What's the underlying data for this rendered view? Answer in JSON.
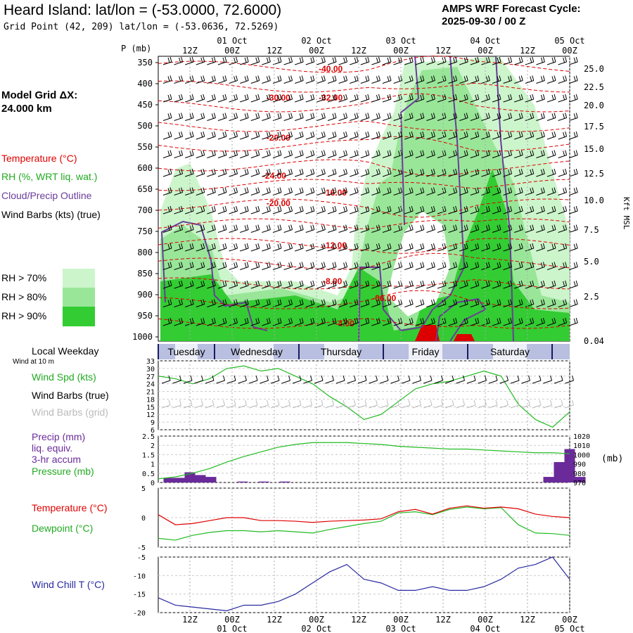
{
  "header": {
    "title": "Heard Island:  lat/lon = (-53.0000, 72.6000)",
    "grid_point": "Grid Point (42, 209) lat/lon = (-53.0636, 72.5269)",
    "cycle_line1": "AMPS WRF Forecast Cycle:",
    "cycle_line2": "2025-09-30 / 00  Z"
  },
  "legend": {
    "model_grid_label": "Model Grid ΔX:",
    "model_grid_value": " 24.000 km",
    "temperature": "Temperature (°C)",
    "rh": "RH (%, WRT liq. wat.)",
    "cloud": "Cloud/Precip Outline",
    "wind": "Wind Barbs (kts) (true)",
    "rh70": "RH > 70%",
    "rh80": "RH > 80%",
    "rh90": "RH > 90%",
    "colors": {
      "rh70": "#ccf5cc",
      "rh80": "#99e699",
      "rh90": "#33cc33",
      "temp": "#e00000",
      "cloud": "#6a3d9a",
      "wind_spd": "#22bb22",
      "dew": "#22bb22",
      "chill": "#2a2aa0",
      "precip": "#6a2a9a"
    }
  },
  "time_axis": {
    "top_labels": [
      "12Z",
      "00Z",
      "12Z",
      "00Z",
      "12Z",
      "00Z",
      "12Z",
      "00Z",
      "12Z",
      "00Z"
    ],
    "date_labels": [
      "01 Oct",
      "02 Oct",
      "03 Oct",
      "04 Oct",
      "05 Oct"
    ],
    "pressure_unit": "P (mb)",
    "right_unit": "Kft MSL"
  },
  "weekday_band": {
    "title": "Local Weekday",
    "days": [
      "Tuesday",
      "Wednesday",
      "Thursday",
      "Friday",
      "Saturday"
    ]
  },
  "panels": {
    "wind_note": "Wind at 10 m",
    "wind_spd": "Wind Spd (kts)",
    "wind_true": "Wind Barbs (true)",
    "wind_grid": "Wind Barbs (grid)",
    "precip1": "Precip (mm)",
    "precip2": "liq. equiv.",
    "precip3": "3-hr accum",
    "pressure": "Pressure (mb)",
    "pressure_unit": "(mb)",
    "temperature": "Temperature (°C)",
    "dewpoint": "Dewpoint (°C)",
    "windchill": "Wind Chill T (°C)"
  },
  "chart_data": [
    {
      "type": "heatmap",
      "name": "cross-section",
      "y_ticks_mb": [
        350,
        400,
        450,
        500,
        550,
        600,
        650,
        700,
        750,
        800,
        850,
        900,
        950,
        1000
      ],
      "right_ticks_kft": [
        "25.0",
        "22.5",
        "20.0",
        "17.5",
        "15.0",
        "12.5",
        "10.0",
        "7.5",
        "5.0",
        "2.5",
        "0.04"
      ],
      "temperature_labels": [
        {
          "text": "-40.00",
          "t": 0.39,
          "p": 372
        },
        {
          "text": "-30.00",
          "t": 0.28,
          "p": 440
        },
        {
          "text": "-32.00",
          "t": 0.39,
          "p": 440
        },
        {
          "text": "-20.00",
          "t": 0.28,
          "p": 535
        },
        {
          "text": "-24.00",
          "t": 0.27,
          "p": 625
        },
        {
          "text": "-16.00",
          "t": 0.4,
          "p": 665
        },
        {
          "text": "-20.00",
          "t": 0.28,
          "p": 690
        },
        {
          "text": "-12.00",
          "t": 0.4,
          "p": 790
        },
        {
          "text": "-8.00",
          "t": 0.4,
          "p": 875
        },
        {
          "text": "-06.00",
          "t": 0.52,
          "p": 915
        },
        {
          "text": "-4.00",
          "t": 0.43,
          "p": 975
        }
      ]
    },
    {
      "type": "line",
      "name": "wind-speed",
      "y_ticks": [
        6,
        9,
        12,
        15,
        18,
        21,
        24,
        27,
        30,
        33
      ],
      "ylim": [
        6,
        33
      ],
      "x_hours": [
        0,
        6,
        12,
        18,
        24,
        30,
        36,
        42,
        48,
        54,
        60,
        66,
        72,
        78,
        84,
        90,
        96,
        102,
        108,
        114,
        120,
        126,
        132,
        138,
        144
      ],
      "values": [
        27,
        26,
        24,
        26,
        30,
        31,
        29,
        30,
        27,
        24,
        19,
        15,
        10,
        12,
        17,
        22,
        24,
        25,
        27,
        29,
        27,
        16,
        10,
        7,
        13
      ]
    },
    {
      "type": "bar",
      "name": "precipitation",
      "y_ticks": [
        "0",
        "0.5",
        "1",
        "1.5",
        "2",
        "2.5"
      ],
      "ylim": [
        0,
        2.5
      ],
      "bars": [
        {
          "h": 3,
          "v": 0.25
        },
        {
          "h": 6,
          "v": 0.25
        },
        {
          "h": 9,
          "v": 0.55
        },
        {
          "h": 12,
          "v": 0.4
        },
        {
          "h": 15,
          "v": 0.3
        },
        {
          "h": 24,
          "v": 0.05
        },
        {
          "h": 30,
          "v": 0.05
        },
        {
          "h": 36,
          "v": 0.05
        },
        {
          "h": 111,
          "v": 0.3
        },
        {
          "h": 114,
          "v": 1.1
        },
        {
          "h": 117,
          "v": 1.8
        },
        {
          "h": 120,
          "v": 0.3
        }
      ],
      "pressure_ticks": [
        970,
        980,
        990,
        1000,
        1010,
        1020
      ],
      "pressure_ylim": [
        970,
        1020
      ],
      "pressure": [
        974,
        976,
        980,
        985,
        992,
        998,
        1003,
        1008,
        1011,
        1013,
        1013,
        1013,
        1012,
        1011,
        1009,
        1008,
        1007,
        1006,
        1006,
        1005,
        1004,
        1003,
        1002,
        1002,
        1001
      ]
    },
    {
      "type": "line",
      "name": "temperature-dewpoint",
      "y_ticks": [
        "-5",
        "0",
        "5"
      ],
      "ylim": [
        -5,
        5
      ],
      "temperature": [
        0.5,
        -1.2,
        -1,
        -0.5,
        0,
        0,
        -0.5,
        -0.5,
        -0.6,
        -0.8,
        -0.6,
        -0.5,
        -0.4,
        -0.2,
        1,
        1.4,
        0.6,
        1.6,
        2,
        1.6,
        1.8,
        1.5,
        0.6,
        0.2,
        0
      ],
      "dewpoint": [
        -3.5,
        -3.8,
        -3,
        -2.5,
        -2.2,
        -2.2,
        -2.4,
        -2.2,
        -2.4,
        -2.6,
        -2,
        -1.5,
        -1,
        -0.6,
        0.8,
        1,
        0.5,
        1.4,
        1.8,
        1.5,
        1.7,
        -1.2,
        -2.6,
        -2.7,
        -3
      ]
    },
    {
      "type": "line",
      "name": "wind-chill",
      "y_ticks": [
        "-5",
        "-10",
        "-15",
        "-20"
      ],
      "ylim": [
        -20,
        -5
      ],
      "values": [
        -16,
        -18,
        -18.5,
        -19,
        -19.5,
        -18,
        -18,
        -17,
        -15,
        -12,
        -9,
        -7,
        -11,
        -12,
        -14,
        -14,
        -13,
        -14,
        -14,
        -13,
        -11,
        -8,
        -7,
        -5,
        -11
      ]
    }
  ]
}
